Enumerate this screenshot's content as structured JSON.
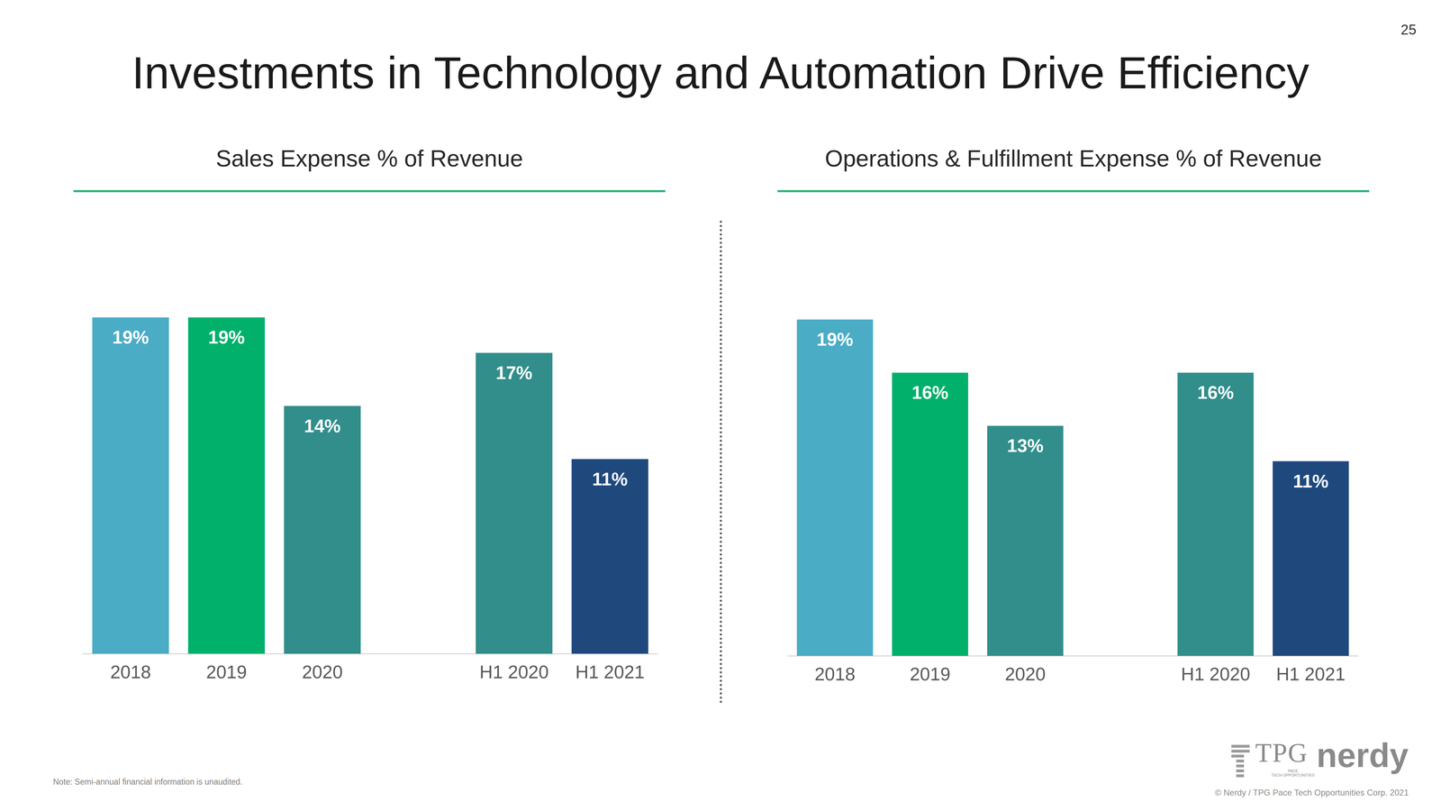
{
  "header": {
    "title": "Investments in Technology and Automation Drive Efficiency",
    "page_number": "25"
  },
  "chart_data": [
    {
      "type": "bar",
      "title": "Sales Expense % of Revenue",
      "categories": [
        "2018",
        "2019",
        "2020",
        null,
        "H1 2020",
        "H1 2021"
      ],
      "values": [
        19,
        19,
        14,
        null,
        17,
        11
      ],
      "value_labels": [
        "19%",
        "19%",
        "14%",
        null,
        "17%",
        "11%"
      ],
      "colors": [
        "#4bacc6",
        "#00b06b",
        "#318e8b",
        null,
        "#318e8b",
        "#1f497d"
      ],
      "ylim": [
        0,
        25
      ],
      "grid": false,
      "data_labels": true,
      "tick_labels": "x"
    },
    {
      "type": "bar",
      "title": "Operations & Fulfillment Expense % of Revenue",
      "categories": [
        "2018",
        "2019",
        "2020",
        null,
        "H1 2020",
        "H1 2021"
      ],
      "values": [
        19,
        16,
        13,
        null,
        16,
        11
      ],
      "value_labels": [
        "19%",
        "16%",
        "13%",
        null,
        "16%",
        "11%"
      ],
      "colors": [
        "#4bacc6",
        "#00b06b",
        "#318e8b",
        null,
        "#318e8b",
        "#1f497d"
      ],
      "ylim": [
        0,
        25
      ],
      "grid": false,
      "data_labels": true,
      "tick_labels": "x"
    }
  ],
  "footer": {
    "note": "Note: Semi-annual financial information is unaudited.",
    "logo_tpg": "TPG",
    "logo_pace": "PACE",
    "logo_tech": "TECH OPPORTUNITIES",
    "logo_nerdy": "nerdy",
    "copyright": "© Nerdy / TPG Pace Tech Opportunities Corp. 2021"
  }
}
